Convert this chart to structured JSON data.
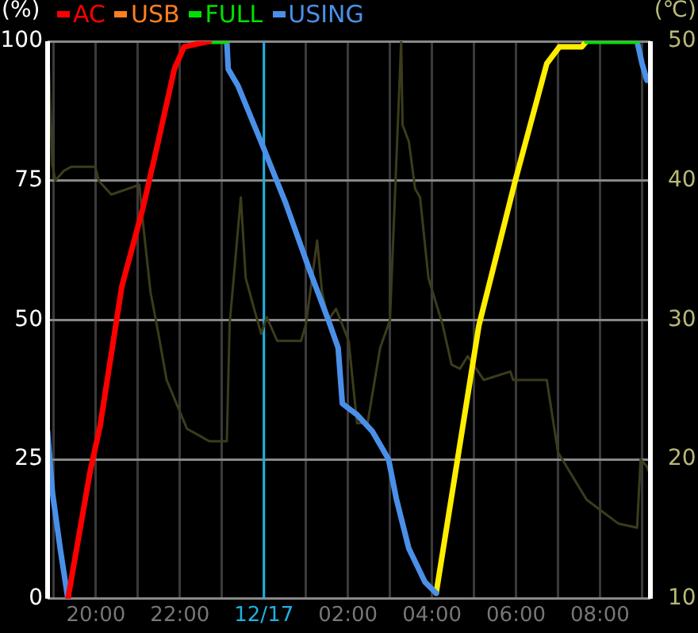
{
  "chart_data": {
    "type": "line",
    "ylabel": "(%)",
    "y2label": "(℃)",
    "legend": "top left",
    "grid": true,
    "marker": "none",
    "line_style": "solid",
    "xlim": [
      "--12-16T18:51",
      "--12-17T09:12"
    ],
    "xticks": [
      {
        "value": "--12-16T19:00",
        "label": null
      },
      {
        "value": "--12-16T20:00",
        "label": "20:00"
      },
      {
        "value": "--12-16T21:00",
        "label": null
      },
      {
        "value": "--12-16T22:00",
        "label": "22:00"
      },
      {
        "value": "--12-16T23:00",
        "label": null
      },
      {
        "value": "--12-17T00:00",
        "label": "12/17"
      },
      {
        "value": "--12-17T01:00",
        "label": null
      },
      {
        "value": "--12-17T02:00",
        "label": "02:00"
      },
      {
        "value": "--12-17T03:00",
        "label": null
      },
      {
        "value": "--12-17T04:00",
        "label": "04:00"
      },
      {
        "value": "--12-17T05:00",
        "label": null
      },
      {
        "value": "--12-17T06:00",
        "label": "06:00"
      },
      {
        "value": "--12-17T07:00",
        "label": null
      },
      {
        "value": "--12-17T08:00",
        "label": "08:00"
      },
      {
        "value": "--12-17T09:00",
        "label": null
      }
    ],
    "ylim": [
      0,
      100
    ],
    "yticks": [
      0,
      25,
      50,
      75,
      100
    ],
    "y2lim": [
      10,
      50
    ],
    "y2ticks": [
      10,
      20,
      30,
      40,
      50
    ],
    "ref_lines": [
      {
        "axis": "x",
        "value": "--12-17T00:00",
        "color": "#20b0e0"
      }
    ],
    "series": [
      {
        "color": "#3c3c1c",
        "axis": "y2",
        "x": [
          "--12-16T18:51",
          "--12-16T18:53",
          "--12-16T18:58",
          "--12-16T19:02",
          "--12-16T19:14",
          "--12-16T19:25",
          "--12-16T19:59",
          "--12-16T20:04",
          "--12-16T20:22",
          "--12-16T21:02",
          "--12-16T21:07",
          "--12-16T21:18",
          "--12-16T21:29",
          "--12-16T21:41",
          "--12-16T22:10",
          "--12-16T22:42",
          "--12-16T23:07",
          "--12-16T23:11",
          "--12-16T23:27",
          "--12-16T23:34",
          "--12-16T23:46",
          "--12-16T23:56",
          "--12-17T00:04",
          "--12-17T00:19",
          "--12-17T00:53",
          "--12-17T01:00",
          "--12-17T01:16",
          "--12-17T01:23",
          "--12-17T01:32",
          "--12-17T01:43",
          "--12-17T02:01",
          "--12-17T02:13",
          "--12-17T02:28",
          "--12-17T02:46",
          "--12-17T03:00",
          "--12-17T03:16",
          "--12-17T03:18",
          "--12-17T03:27",
          "--12-17T03:36",
          "--12-17T03:43",
          "--12-17T03:55",
          "--12-17T04:15",
          "--12-17T04:28",
          "--12-17T04:40",
          "--12-17T04:51",
          "--12-17T05:14",
          "--12-17T05:52",
          "--12-17T05:56",
          "--12-17T06:44",
          "--12-17T07:00",
          "--12-17T07:41",
          "--12-17T08:26",
          "--12-17T08:53",
          "--12-17T08:58",
          "--12-17T09:07",
          "--12-17T09:11"
        ],
        "values": [
          41.1,
          47.9,
          41.1,
          40,
          40.7,
          41,
          41,
          40,
          39,
          39.7,
          37.1,
          32,
          29.1,
          25.7,
          22.2,
          21.3,
          21.3,
          29.7,
          38.8,
          33,
          30.8,
          29,
          30.2,
          28.5,
          28.5,
          29.7,
          35.7,
          32,
          30,
          30.8,
          28.5,
          22.6,
          22.6,
          28,
          30,
          50,
          44,
          42.8,
          39.4,
          38.8,
          33,
          29.7,
          26.8,
          26.5,
          27.4,
          25.7,
          26.3,
          25.7,
          25.7,
          20.5,
          17.1,
          15.4,
          15.1,
          20,
          19.5,
          19
        ]
      },
      {
        "name": "AC",
        "color": "#ff0000",
        "x": [
          "--12-16T19:20",
          "--12-16T19:52",
          "--12-16T20:06",
          "--12-16T20:37",
          "--12-16T21:07",
          "--12-16T21:29",
          "--12-16T21:52",
          "--12-16T22:06",
          "--12-16T22:42"
        ],
        "values": [
          0,
          23,
          31,
          56,
          70,
          82,
          95,
          99,
          100
        ]
      },
      {
        "name": "USB",
        "color": "#ff7f1e"
      },
      {
        "name": "FULL",
        "color": "#00e000",
        "x": [
          "--12-16T22:42",
          "--12-16T23:07",
          "--12-17T03:00",
          "--12-17T07:41",
          "--12-17T08:53"
        ],
        "values": [
          100,
          100,
          null,
          100,
          100
        ]
      },
      {
        "name": "USING",
        "color": "#4a90e8",
        "x": [
          "--12-16T18:51",
          "--12-16T18:58",
          "--12-16T19:09",
          "--12-16T19:20",
          "--12-16T21:00",
          "--12-16T23:07",
          "--12-16T23:09",
          "--12-16T23:23",
          "--12-16T23:59",
          "--12-17T00:31",
          "--12-17T01:05",
          "--12-17T01:32",
          "--12-17T01:46",
          "--12-17T01:52",
          "--12-17T02:13",
          "--12-17T02:35",
          "--12-17T02:58",
          "--12-17T03:09",
          "--12-17T03:27",
          "--12-17T03:50",
          "--12-17T04:06",
          "--12-17T06:00",
          "--12-17T08:53",
          "--12-17T09:00",
          "--12-17T09:07",
          "--12-17T09:11"
        ],
        "values": [
          30,
          19,
          9,
          0,
          null,
          100,
          95,
          92,
          81,
          71,
          59,
          50,
          45,
          35,
          33,
          30,
          25,
          18,
          9,
          3,
          1,
          null,
          100,
          96,
          93,
          93
        ]
      },
      {
        "color": "#ffee00",
        "x": [
          "--12-17T04:06",
          "--12-17T05:07",
          "--12-17T05:25",
          "--12-17T05:59",
          "--12-17T06:44",
          "--12-17T07:02",
          "--12-17T07:34",
          "--12-17T07:41"
        ],
        "values": [
          1,
          49,
          58,
          75,
          96,
          99,
          99,
          100
        ]
      }
    ]
  }
}
